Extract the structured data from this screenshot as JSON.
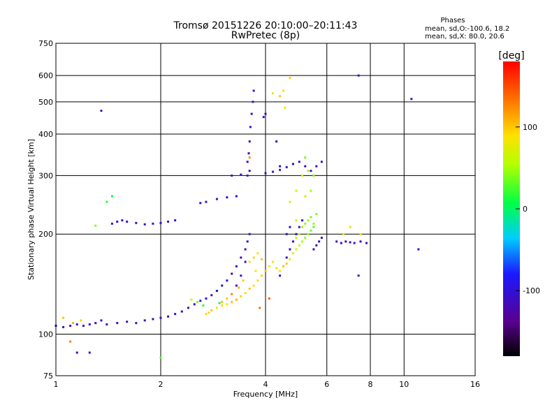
{
  "chart_data": {
    "type": "scatter",
    "title": "Tromsø 20151226 20:10:00–20:11:43",
    "subtitle": "RwPretec (8p)",
    "xlabel": "Frequency [MHz]",
    "ylabel": "Stationary phase Virtual Height [km]",
    "x_scale": "log",
    "y_scale": "log",
    "xlim": [
      1,
      16
    ],
    "ylim": [
      75,
      750
    ],
    "x_ticks": [
      1,
      2,
      4,
      6,
      8,
      10,
      16
    ],
    "x_tick_labels": [
      "1",
      "2",
      "4",
      "6",
      "8",
      "10",
      "16"
    ],
    "y_ticks": [
      75,
      100,
      200,
      300,
      400,
      500,
      600,
      750
    ],
    "y_tick_labels": [
      "75",
      "100",
      "200",
      "300",
      "400",
      "500",
      "600",
      "750"
    ],
    "grid": true,
    "colorbar": {
      "label": "[deg]",
      "min": -180,
      "max": 180,
      "ticks": [
        100,
        0,
        -100
      ],
      "tick_labels": [
        "100",
        "0",
        "-100"
      ]
    },
    "stats": {
      "heading": "Phases",
      "line1": "mean, sd,O:-100.6, 18.2",
      "line2": "mean, sd,X: 80.0, 20.6"
    },
    "series": [
      {
        "points": [
          [
            1.0,
            106,
            -110
          ],
          [
            1.05,
            105,
            -108
          ],
          [
            1.1,
            106,
            -112
          ],
          [
            1.15,
            107,
            -105
          ],
          [
            1.2,
            106,
            -100
          ],
          [
            1.25,
            107,
            -115
          ],
          [
            1.3,
            108,
            -108
          ],
          [
            1.35,
            110,
            -95
          ],
          [
            1.4,
            107,
            -110
          ],
          [
            1.5,
            108,
            -105
          ],
          [
            1.6,
            109,
            -112
          ],
          [
            1.7,
            108,
            -100
          ],
          [
            1.8,
            110,
            -108
          ],
          [
            1.9,
            111,
            -115
          ],
          [
            2.0,
            112,
            -105
          ],
          [
            2.1,
            113,
            -110
          ],
          [
            2.2,
            115,
            -100
          ],
          [
            2.3,
            117,
            -108
          ],
          [
            2.4,
            120,
            -112
          ],
          [
            2.5,
            123,
            -105
          ],
          [
            2.6,
            126,
            -95
          ],
          [
            2.7,
            128,
            -108
          ],
          [
            2.8,
            131,
            -110
          ],
          [
            2.9,
            135,
            -100
          ],
          [
            3.0,
            140,
            -115
          ],
          [
            3.1,
            145,
            -105
          ],
          [
            3.2,
            152,
            -110
          ],
          [
            3.3,
            160,
            -100
          ],
          [
            3.4,
            170,
            -108
          ],
          [
            3.5,
            180,
            -112
          ],
          [
            3.55,
            190,
            -105
          ],
          [
            3.6,
            200,
            -110
          ],
          [
            3.5,
            165,
            -95
          ],
          [
            3.4,
            150,
            -100
          ],
          [
            3.3,
            140,
            -108
          ],
          [
            4.4,
            150,
            -110
          ],
          [
            4.5,
            160,
            -105
          ],
          [
            4.6,
            170,
            -100
          ],
          [
            4.7,
            180,
            -108
          ],
          [
            4.8,
            190,
            -112
          ],
          [
            4.9,
            200,
            -105
          ],
          [
            5.0,
            210,
            -110
          ],
          [
            5.1,
            220,
            -100
          ],
          [
            4.6,
            200,
            -115
          ],
          [
            4.7,
            210,
            -108
          ],
          [
            5.5,
            180,
            -105
          ],
          [
            5.6,
            185,
            -100
          ],
          [
            5.7,
            190,
            -110
          ],
          [
            5.8,
            195,
            -108
          ],
          [
            3.55,
            330,
            -110
          ],
          [
            3.58,
            350,
            -105
          ],
          [
            3.6,
            380,
            -112
          ],
          [
            3.62,
            420,
            -100
          ],
          [
            3.65,
            460,
            -108
          ],
          [
            3.68,
            500,
            -110
          ],
          [
            3.7,
            540,
            -105
          ],
          [
            3.6,
            310,
            -115
          ],
          [
            3.55,
            300,
            -100
          ],
          [
            3.2,
            300,
            -108
          ],
          [
            3.4,
            302,
            -112
          ],
          [
            3.3,
            260,
            -105
          ],
          [
            3.1,
            258,
            -110
          ],
          [
            2.9,
            255,
            -100
          ],
          [
            2.7,
            250,
            -108
          ],
          [
            2.6,
            248,
            -115
          ],
          [
            4.0,
            305,
            -110
          ],
          [
            4.2,
            308,
            -105
          ],
          [
            4.4,
            312,
            -100
          ],
          [
            4.6,
            318,
            -108
          ],
          [
            4.8,
            325,
            -112
          ],
          [
            5.0,
            330,
            -105
          ],
          [
            5.2,
            320,
            -110
          ],
          [
            5.4,
            310,
            -100
          ],
          [
            5.6,
            320,
            -108
          ],
          [
            5.8,
            330,
            -105
          ],
          [
            4.0,
            460,
            -110
          ],
          [
            3.95,
            450,
            -105
          ],
          [
            4.3,
            380,
            -108
          ],
          [
            4.4,
            320,
            -100
          ],
          [
            1.45,
            215,
            -110
          ],
          [
            1.5,
            218,
            -105
          ],
          [
            1.55,
            220,
            -112
          ],
          [
            1.6,
            218,
            -100
          ],
          [
            1.7,
            216,
            -108
          ],
          [
            1.8,
            214,
            -110
          ],
          [
            1.9,
            215,
            -105
          ],
          [
            2.0,
            216,
            -100
          ],
          [
            2.1,
            218,
            -112
          ],
          [
            2.2,
            220,
            -108
          ],
          [
            6.4,
            190,
            -110
          ],
          [
            6.6,
            188,
            -105
          ],
          [
            6.8,
            190,
            -100
          ],
          [
            7.0,
            189,
            -108
          ],
          [
            7.2,
            188,
            -112
          ],
          [
            7.5,
            190,
            -105
          ],
          [
            7.8,
            188,
            -110
          ],
          [
            1.35,
            470,
            -110
          ],
          [
            10.5,
            510,
            -100
          ],
          [
            7.4,
            600,
            -120
          ],
          [
            7.4,
            150,
            -110
          ],
          [
            11.0,
            180,
            -95
          ],
          [
            1.15,
            88,
            -105
          ],
          [
            1.25,
            88,
            -110
          ]
        ]
      },
      {
        "points": [
          [
            2.8,
            118,
            100
          ],
          [
            2.9,
            120,
            90
          ],
          [
            3.0,
            122,
            95
          ],
          [
            3.1,
            123,
            85
          ],
          [
            3.2,
            125,
            100
          ],
          [
            3.3,
            127,
            110
          ],
          [
            3.4,
            130,
            95
          ],
          [
            3.5,
            133,
            80
          ],
          [
            3.6,
            137,
            100
          ],
          [
            3.7,
            140,
            90
          ],
          [
            3.8,
            145,
            85
          ],
          [
            3.9,
            150,
            95
          ],
          [
            4.0,
            155,
            100
          ],
          [
            4.1,
            160,
            90
          ],
          [
            4.2,
            165,
            80
          ],
          [
            4.3,
            158,
            70
          ],
          [
            4.4,
            155,
            85
          ],
          [
            4.5,
            160,
            95
          ],
          [
            4.6,
            163,
            100
          ],
          [
            4.7,
            168,
            90
          ],
          [
            4.8,
            175,
            80
          ],
          [
            4.9,
            180,
            70
          ],
          [
            5.0,
            185,
            60
          ],
          [
            5.1,
            190,
            50
          ],
          [
            5.2,
            195,
            45
          ],
          [
            5.3,
            200,
            40
          ],
          [
            5.4,
            205,
            35
          ],
          [
            5.5,
            210,
            30
          ],
          [
            4.9,
            195,
            60
          ],
          [
            5.0,
            200,
            55
          ],
          [
            5.1,
            210,
            45
          ],
          [
            5.2,
            215,
            40
          ],
          [
            5.3,
            220,
            50
          ],
          [
            5.4,
            225,
            35
          ],
          [
            5.5,
            215,
            45
          ],
          [
            5.6,
            230,
            40
          ],
          [
            5.2,
            260,
            60
          ],
          [
            5.4,
            270,
            50
          ],
          [
            5.5,
            300,
            40
          ],
          [
            5.3,
            310,
            45
          ],
          [
            5.1,
            300,
            60
          ],
          [
            4.9,
            270,
            70
          ],
          [
            5.2,
            340,
            35
          ],
          [
            4.7,
            250,
            75
          ],
          [
            4.9,
            220,
            65
          ],
          [
            3.6,
            165,
            85
          ],
          [
            3.7,
            170,
            95
          ],
          [
            3.8,
            175,
            90
          ],
          [
            3.9,
            168,
            100
          ],
          [
            3.75,
            155,
            80
          ],
          [
            3.45,
            145,
            95
          ],
          [
            3.35,
            138,
            110
          ],
          [
            3.2,
            132,
            125
          ],
          [
            3.1,
            128,
            100
          ],
          [
            3.0,
            125,
            105
          ],
          [
            2.75,
            116,
            95
          ],
          [
            2.7,
            115,
            85
          ],
          [
            1.12,
            108,
            110
          ],
          [
            1.18,
            110,
            95
          ],
          [
            1.05,
            112,
            100
          ],
          [
            4.5,
            540,
            90
          ],
          [
            4.4,
            520,
            100
          ],
          [
            4.7,
            590,
            95
          ],
          [
            4.55,
            480,
            80
          ],
          [
            4.2,
            530,
            85
          ],
          [
            6.7,
            200,
            80
          ],
          [
            7.0,
            210,
            95
          ],
          [
            7.5,
            200,
            90
          ],
          [
            2.45,
            127,
            60
          ],
          [
            2.55,
            125,
            40
          ],
          [
            2.65,
            122,
            20
          ],
          [
            2.95,
            124,
            10
          ],
          [
            1.4,
            250,
            20
          ],
          [
            1.45,
            260,
            10
          ],
          [
            1.3,
            212,
            40
          ],
          [
            2.0,
            85,
            30
          ],
          [
            1.1,
            95,
            130
          ],
          [
            3.85,
            120,
            135
          ],
          [
            4.1,
            128,
            140
          ],
          [
            3.6,
            340,
            120
          ]
        ]
      }
    ]
  }
}
